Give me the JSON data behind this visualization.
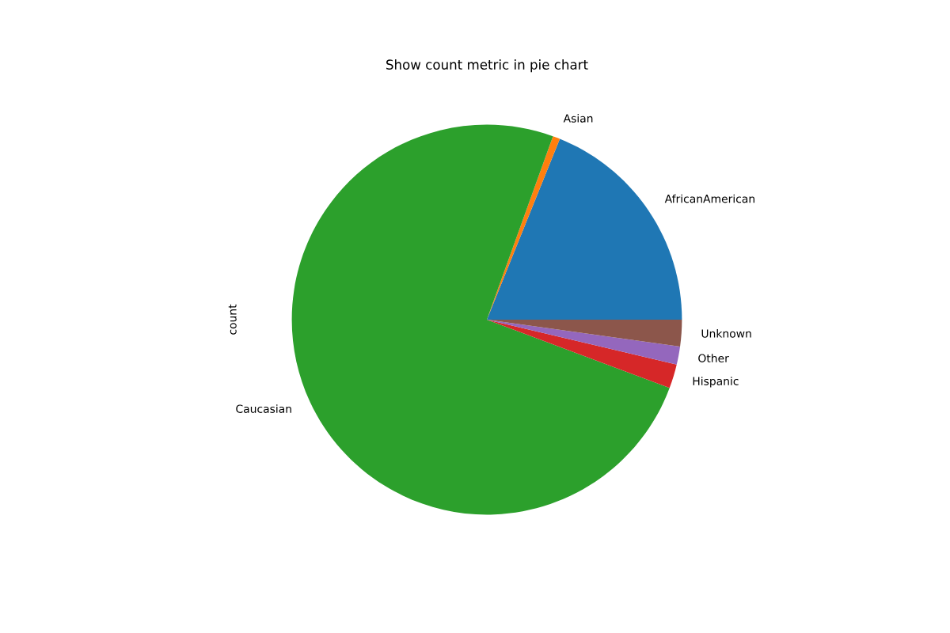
{
  "chart_data": {
    "type": "pie",
    "title": "Show count metric in pie chart",
    "ylabel": "count",
    "categories": [
      "AfricanAmerican",
      "Asian",
      "Caucasian",
      "Hispanic",
      "Other",
      "Unknown"
    ],
    "values": [
      18.9,
      0.6,
      74.8,
      2.0,
      1.5,
      2.2
    ],
    "colors": [
      "#1f77b4",
      "#ff7f0e",
      "#2ca02c",
      "#d62728",
      "#9467bd",
      "#8c564b"
    ]
  }
}
